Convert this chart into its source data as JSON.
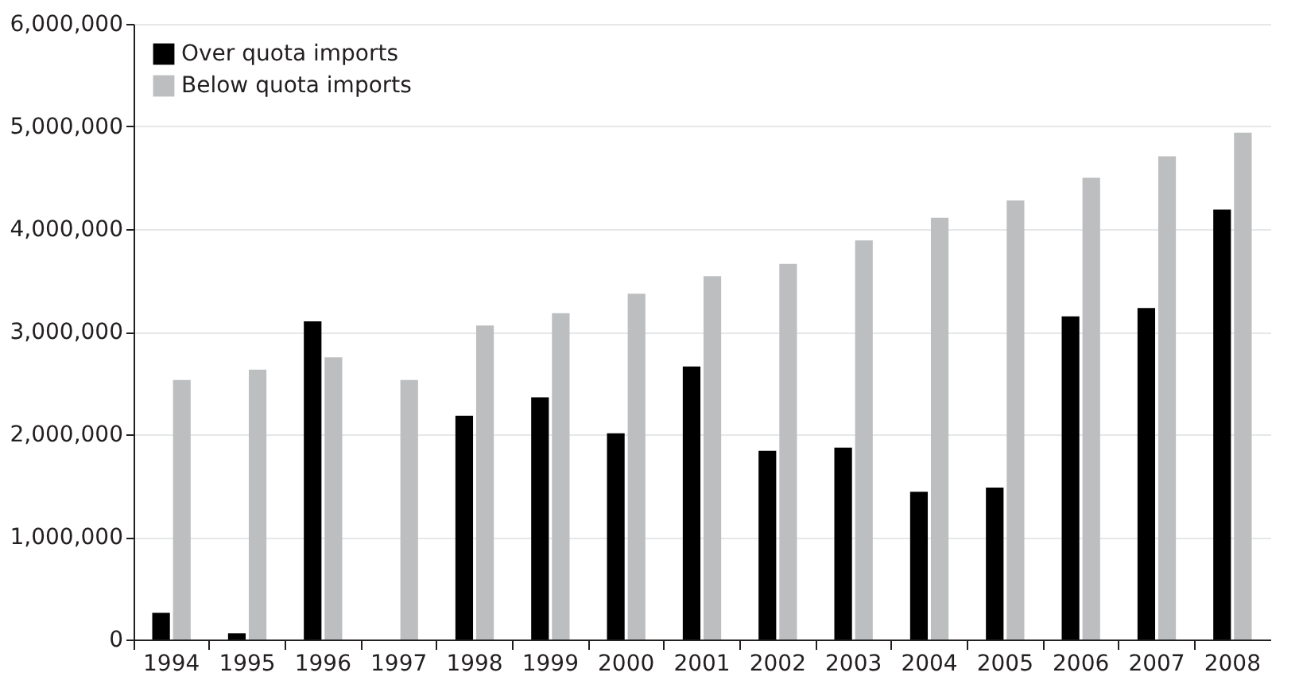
{
  "chart_data": {
    "type": "bar",
    "categories": [
      "1994",
      "1995",
      "1996",
      "1997",
      "1998",
      "1999",
      "2000",
      "2001",
      "2002",
      "2003",
      "2004",
      "2005",
      "2006",
      "2007",
      "2008"
    ],
    "series": [
      {
        "name": "Over quota imports",
        "color": "#000000",
        "values": [
          260000,
          60000,
          3100000,
          0,
          2180000,
          2360000,
          2010000,
          2660000,
          1840000,
          1870000,
          1440000,
          1480000,
          3150000,
          3230000,
          4190000
        ]
      },
      {
        "name": "Below quota imports",
        "color": "#bcbec0",
        "values": [
          2530000,
          2630000,
          2750000,
          2530000,
          3060000,
          3180000,
          3370000,
          3540000,
          3660000,
          3890000,
          4110000,
          4280000,
          4500000,
          4710000,
          4940000
        ]
      }
    ],
    "ylim": [
      0,
      6000000
    ],
    "yticks": [
      0,
      {
        "value": 1000000,
        "label": "1,000,000"
      },
      {
        "value": 2000000,
        "label": "2,000,000"
      },
      {
        "value": 3000000,
        "label": "3,000,000"
      },
      {
        "value": 4000000,
        "label": "4,000,000"
      },
      {
        "value": 5000000,
        "label": "5,000,000"
      },
      {
        "value": 6000000,
        "label": "6,000,000"
      }
    ],
    "grid": "y",
    "legend": "top left"
  }
}
